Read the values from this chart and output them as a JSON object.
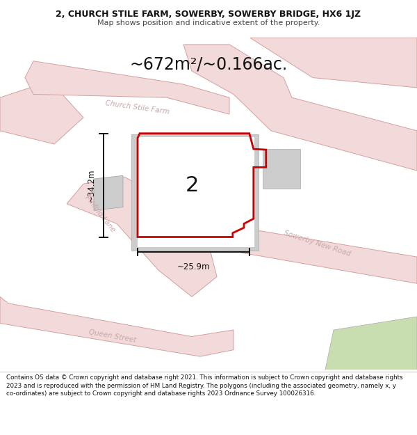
{
  "title_line1": "2, CHURCH STILE FARM, SOWERBY, SOWERBY BRIDGE, HX6 1JZ",
  "title_line2": "Map shows position and indicative extent of the property.",
  "area_text": "~672m²/~0.166ac.",
  "label_number": "2",
  "dim_vertical": "~34.2m",
  "dim_horizontal": "~25.9m",
  "footer_text": "Contains OS data © Crown copyright and database right 2021. This information is subject to Crown copyright and database rights 2023 and is reproduced with the permission of HM Land Registry. The polygons (including the associated geometry, namely x, y co-ordinates) are subject to Crown copyright and database rights 2023 Ordnance Survey 100026316.",
  "map_bg": "#f7f0f0",
  "road_fill": "#f2dada",
  "road_edge": "#d4a0a0",
  "road_edge2": "#c89090",
  "grey_block": "#cccccc",
  "grey_edge": "#aaaaaa",
  "red_prop": "#cc0000",
  "road_text": "#c8a8a8",
  "green_fill": "#c8ddb0",
  "black": "#111111",
  "white": "#ffffff",
  "header_fs": 9.0,
  "subtitle_fs": 8.0,
  "area_fs": 17,
  "label_fs": 22,
  "dim_fs": 8.5,
  "road_fs": 8.0,
  "footer_fs": 6.3
}
